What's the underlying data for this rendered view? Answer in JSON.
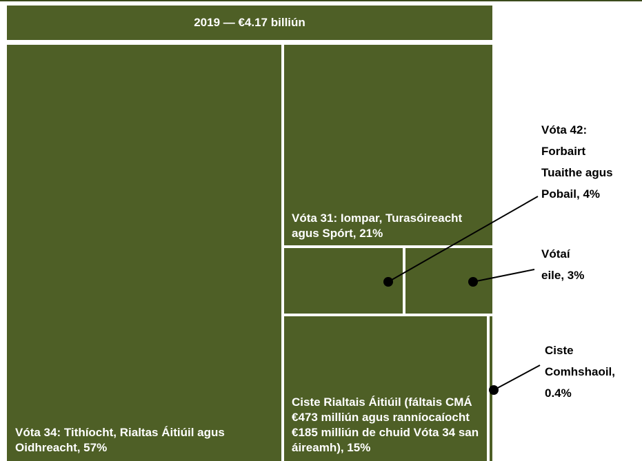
{
  "chart_data": {
    "type": "treemap",
    "title": "2019 — €4.17 billiún",
    "categories": [
      "Vóta 34: Tithíocht, Rialtas Áitiúil agus Oidhreacht, 57%",
      "Vóta 31: Iompar, Turasóireacht agus Spórt, 21%",
      "Vóta 42: Forbairt Tuaithe agus Pobail, 4%",
      "Vótaí eile, 3%",
      "Ciste Rialtais Áitiúil (fáltais CMÁ €473 milliún agus ranníocaíocht €185 milliún de chuid Vóta 34 san áireamh), 15%",
      "Ciste Comhshaoil, 0.4%"
    ],
    "values": [
      57,
      21,
      4,
      3,
      15,
      0.4
    ],
    "color": "#4e5f26"
  }
}
